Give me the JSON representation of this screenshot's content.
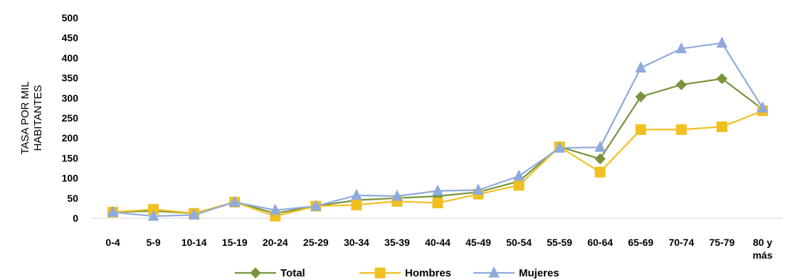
{
  "chart_data": {
    "type": "line",
    "title": "",
    "xlabel": "",
    "ylabel_lines": [
      "TASA POR MIL",
      "HABITANTES"
    ],
    "categories": [
      [
        "0-4"
      ],
      [
        "5-9"
      ],
      [
        "10-14"
      ],
      [
        "15-19"
      ],
      [
        "20-24"
      ],
      [
        "25-29"
      ],
      [
        "30-34"
      ],
      [
        "35-39"
      ],
      [
        "40-44"
      ],
      [
        "45-49"
      ],
      [
        "50-54"
      ],
      [
        "55-59"
      ],
      [
        "60-64"
      ],
      [
        "65-69"
      ],
      [
        "70-74"
      ],
      [
        "75-79"
      ],
      [
        "80 y",
        "más"
      ]
    ],
    "ylim": [
      0,
      500
    ],
    "yticks": [
      "0",
      "50",
      "100",
      "150",
      "200",
      "250",
      "300",
      "350",
      "400",
      "450",
      "500"
    ],
    "grid": false,
    "legend_position": "bottom",
    "series": [
      {
        "name": "Total",
        "color": "#77933c",
        "marker": "diamond",
        "values": [
          15,
          18,
          12,
          40,
          12,
          30,
          45,
          50,
          55,
          65,
          92,
          178,
          148,
          303,
          333,
          348,
          272
        ]
      },
      {
        "name": "Hombres",
        "color": "#f0c020",
        "marker": "square",
        "values": [
          15,
          22,
          12,
          40,
          5,
          30,
          33,
          42,
          38,
          60,
          82,
          178,
          115,
          221,
          221,
          228,
          268
        ]
      },
      {
        "name": "Mujeres",
        "color": "#8faadc",
        "marker": "triangle",
        "values": [
          15,
          5,
          8,
          40,
          20,
          30,
          57,
          55,
          68,
          70,
          105,
          175,
          177,
          375,
          423,
          437,
          275
        ]
      }
    ]
  }
}
